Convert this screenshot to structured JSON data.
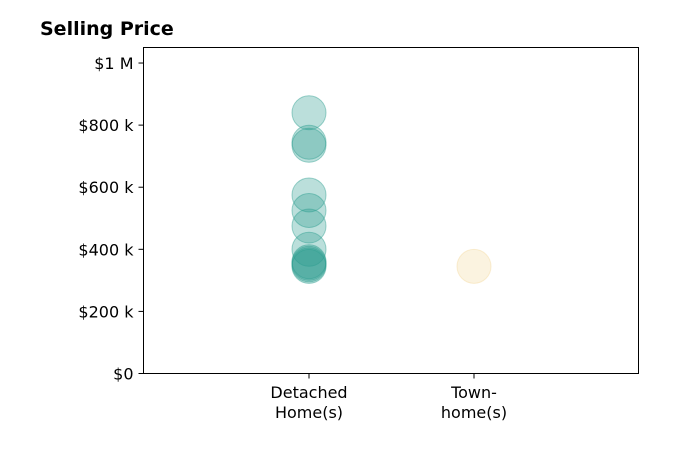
{
  "chart_data": {
    "type": "scatter",
    "title": "Selling Price",
    "xlabel": "",
    "ylabel": "",
    "categories": [
      [
        "Detached",
        "Home(s)"
      ],
      [
        "Town-",
        "home(s)"
      ]
    ],
    "ylim": [
      0,
      1050000
    ],
    "yticks": [
      0,
      200000,
      400000,
      600000,
      800000,
      1000000
    ],
    "ytick_labels": [
      "$0",
      "$200 k",
      "$400 k",
      "$600 k",
      "$800 k",
      "$1 M"
    ],
    "grid": false,
    "legend": "none",
    "series": [
      {
        "category_index": 0,
        "color": "#2a9d8f",
        "values": [
          840000,
          745000,
          735000,
          575000,
          525000,
          475000,
          400000,
          360000,
          355000,
          350000,
          345000
        ]
      },
      {
        "category_index": 1,
        "color": "#f4d9a0",
        "values": [
          345000
        ]
      }
    ]
  }
}
